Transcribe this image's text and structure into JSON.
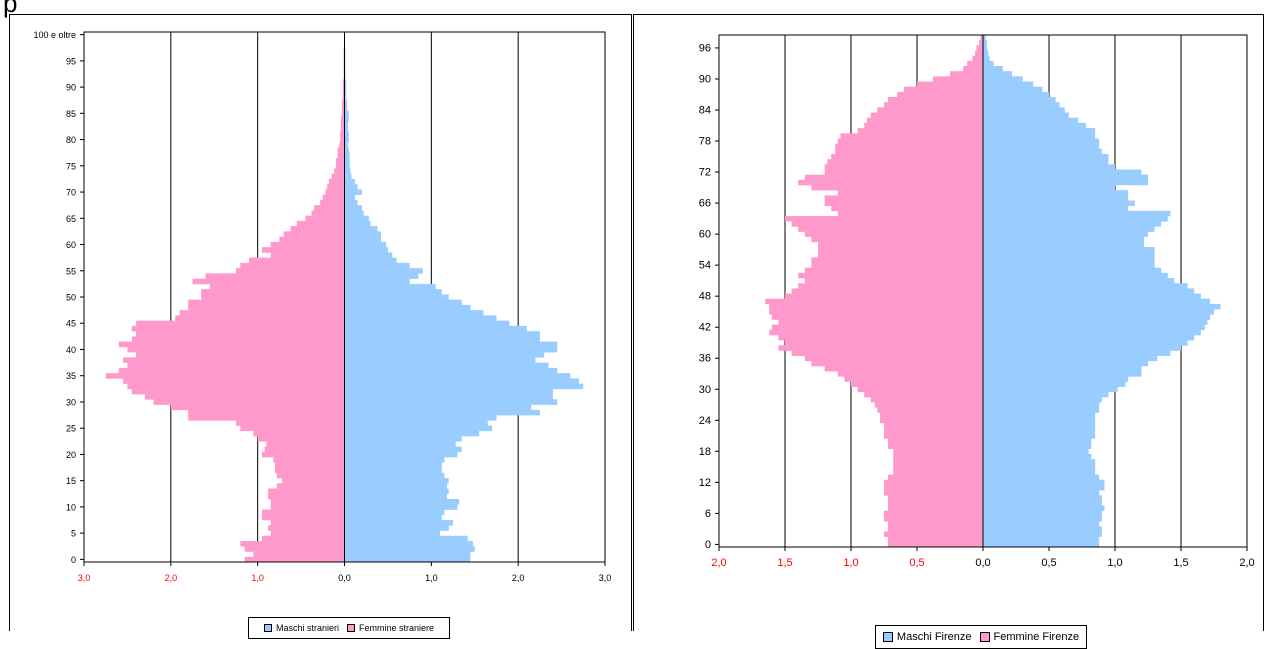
{
  "page_marker": "p",
  "colors": {
    "males": "#99CCFF",
    "females": "#FF99CC",
    "axis_text_negative": "#FF0000",
    "text": "#000000"
  },
  "chart_data": [
    {
      "type": "bar",
      "orientation": "horizontal",
      "title": "",
      "xlabel": "",
      "ylabel": "",
      "xlim": [
        -3.0,
        3.0
      ],
      "x_ticks": [
        -3,
        -2,
        -1,
        0,
        1,
        2,
        3
      ],
      "x_tick_labels": [
        "3,0",
        "2,0",
        "1,0",
        "0,0",
        "1,0",
        "2,0",
        "3,0"
      ],
      "y_tick_ages": [
        0,
        5,
        10,
        15,
        20,
        25,
        30,
        35,
        40,
        45,
        50,
        55,
        60,
        65,
        70,
        75,
        80,
        85,
        90,
        95,
        100
      ],
      "y_tick_labels": [
        "0",
        "5",
        "10",
        "15",
        "20",
        "25",
        "30",
        "35",
        "40",
        "45",
        "50",
        "55",
        "60",
        "65",
        "70",
        "75",
        "80",
        "85",
        "90",
        "95",
        "100 e oltre"
      ],
      "grid": "vertical",
      "legend": "bottom",
      "series": [
        {
          "name": "Maschi stranieri",
          "color": "#99CCFF",
          "values": [
            1.45,
            1.45,
            1.5,
            1.48,
            1.42,
            1.1,
            1.2,
            1.25,
            1.12,
            1.15,
            1.3,
            1.32,
            1.18,
            1.2,
            1.18,
            1.2,
            1.15,
            1.12,
            1.12,
            1.15,
            1.3,
            1.35,
            1.28,
            1.35,
            1.55,
            1.7,
            1.65,
            1.75,
            2.25,
            2.15,
            2.45,
            2.4,
            2.4,
            2.75,
            2.7,
            2.6,
            2.45,
            2.35,
            2.2,
            2.3,
            2.45,
            2.45,
            2.25,
            2.25,
            2.1,
            1.9,
            1.75,
            1.6,
            1.45,
            1.35,
            1.2,
            1.12,
            1.05,
            0.75,
            0.85,
            0.9,
            0.75,
            0.6,
            0.55,
            0.5,
            0.48,
            0.42,
            0.42,
            0.38,
            0.3,
            0.28,
            0.22,
            0.2,
            0.15,
            0.12,
            0.2,
            0.15,
            0.12,
            0.08,
            0.07,
            0.06,
            0.06,
            0.06,
            0.05,
            0.04,
            0.05,
            0.05,
            0.04,
            0.04,
            0.05,
            0.05,
            0.03,
            0.03,
            0.02,
            0.02,
            0.02,
            0.02,
            0.01,
            0.01,
            0.01,
            0.01,
            0.01,
            0.01,
            0.0,
            0.0,
            0.0
          ]
        },
        {
          "name": "Femmine straniere",
          "color": "#FF99CC",
          "values": [
            1.15,
            1.05,
            1.15,
            1.2,
            0.95,
            0.85,
            0.88,
            0.85,
            0.95,
            0.95,
            0.85,
            0.85,
            0.88,
            0.88,
            0.78,
            0.72,
            0.78,
            0.8,
            0.8,
            0.82,
            0.95,
            0.92,
            0.9,
            1.0,
            1.05,
            1.2,
            1.25,
            1.8,
            1.8,
            2.0,
            2.2,
            2.3,
            2.45,
            2.5,
            2.55,
            2.75,
            2.6,
            2.5,
            2.55,
            2.4,
            2.5,
            2.6,
            2.45,
            2.4,
            2.45,
            2.4,
            1.95,
            1.9,
            1.8,
            1.8,
            1.65,
            1.65,
            1.55,
            1.75,
            1.6,
            1.25,
            1.2,
            1.1,
            0.85,
            0.95,
            0.85,
            0.75,
            0.7,
            0.62,
            0.55,
            0.45,
            0.38,
            0.35,
            0.28,
            0.25,
            0.22,
            0.2,
            0.18,
            0.15,
            0.12,
            0.1,
            0.1,
            0.08,
            0.08,
            0.06,
            0.05,
            0.05,
            0.04,
            0.04,
            0.04,
            0.03,
            0.03,
            0.03,
            0.02,
            0.02,
            0.02,
            0.02,
            0.01,
            0.01,
            0.01,
            0.01,
            0.01,
            0.01,
            0.0,
            0.0,
            0.0
          ]
        }
      ]
    },
    {
      "type": "bar",
      "orientation": "horizontal",
      "title": "",
      "xlabel": "",
      "ylabel": "",
      "xlim": [
        -2.0,
        2.0
      ],
      "x_ticks": [
        -2,
        -1.5,
        -1,
        -0.5,
        0,
        0.5,
        1,
        1.5,
        2
      ],
      "x_tick_labels": [
        "2,0",
        "1,5",
        "1,0",
        "0,5",
        "0,0",
        "0,5",
        "1,0",
        "1,5",
        "2,0"
      ],
      "y_tick_ages": [
        0,
        6,
        12,
        18,
        24,
        30,
        36,
        42,
        48,
        54,
        60,
        66,
        72,
        78,
        84,
        90,
        96
      ],
      "y_tick_labels": [
        "0",
        "6",
        "12",
        "18",
        "24",
        "30",
        "36",
        "42",
        "48",
        "54",
        "60",
        "66",
        "72",
        "78",
        "84",
        "90",
        "96"
      ],
      "grid": "vertical",
      "legend": "bottom",
      "series": [
        {
          "name": "Maschi Firenze",
          "color": "#99CCFF",
          "values": [
            0.88,
            0.88,
            0.9,
            0.9,
            0.88,
            0.9,
            0.9,
            0.92,
            0.9,
            0.9,
            0.88,
            0.92,
            0.92,
            0.88,
            0.85,
            0.85,
            0.85,
            0.82,
            0.8,
            0.82,
            0.82,
            0.85,
            0.85,
            0.85,
            0.85,
            0.85,
            0.88,
            0.88,
            0.9,
            0.95,
            1.02,
            1.08,
            1.1,
            1.2,
            1.2,
            1.25,
            1.32,
            1.42,
            1.5,
            1.55,
            1.6,
            1.65,
            1.68,
            1.7,
            1.72,
            1.75,
            1.8,
            1.72,
            1.65,
            1.6,
            1.55,
            1.45,
            1.4,
            1.35,
            1.3,
            1.3,
            1.3,
            1.3,
            1.22,
            1.22,
            1.25,
            1.3,
            1.35,
            1.4,
            1.42,
            1.1,
            1.15,
            1.1,
            1.1,
            1.0,
            1.25,
            1.25,
            1.2,
            1.0,
            0.95,
            0.95,
            0.9,
            0.88,
            0.88,
            0.85,
            0.85,
            0.78,
            0.72,
            0.65,
            0.62,
            0.58,
            0.55,
            0.5,
            0.45,
            0.38,
            0.3,
            0.22,
            0.15,
            0.08,
            0.05,
            0.04,
            0.03,
            0.03,
            0.02
          ],
          "oldest_bar_label": ""
        },
        {
          "name": "Femmine Firenze",
          "color": "#FF99CC",
          "values": [
            0.72,
            0.72,
            0.75,
            0.72,
            0.72,
            0.75,
            0.75,
            0.72,
            0.72,
            0.72,
            0.75,
            0.75,
            0.75,
            0.72,
            0.68,
            0.68,
            0.68,
            0.68,
            0.68,
            0.72,
            0.72,
            0.75,
            0.75,
            0.75,
            0.78,
            0.78,
            0.8,
            0.82,
            0.85,
            0.9,
            0.95,
            1.0,
            1.05,
            1.1,
            1.2,
            1.3,
            1.35,
            1.45,
            1.55,
            1.5,
            1.55,
            1.62,
            1.6,
            1.55,
            1.6,
            1.62,
            1.62,
            1.65,
            1.5,
            1.45,
            1.4,
            1.35,
            1.4,
            1.35,
            1.3,
            1.3,
            1.25,
            1.25,
            1.25,
            1.3,
            1.35,
            1.4,
            1.45,
            1.5,
            1.1,
            1.15,
            1.2,
            1.2,
            1.1,
            1.3,
            1.4,
            1.35,
            1.2,
            1.2,
            1.18,
            1.15,
            1.12,
            1.12,
            1.1,
            1.08,
            0.95,
            0.9,
            0.88,
            0.85,
            0.8,
            0.75,
            0.72,
            0.65,
            0.6,
            0.5,
            0.38,
            0.25,
            0.15,
            0.12,
            0.08,
            0.06,
            0.05,
            0.03,
            0.02
          ]
        }
      ]
    }
  ],
  "legends": {
    "left": {
      "males": "Maschi stranieri",
      "females": "Femmine straniere"
    },
    "right": {
      "males": "Maschi Firenze",
      "females": "Femmine Firenze"
    }
  }
}
